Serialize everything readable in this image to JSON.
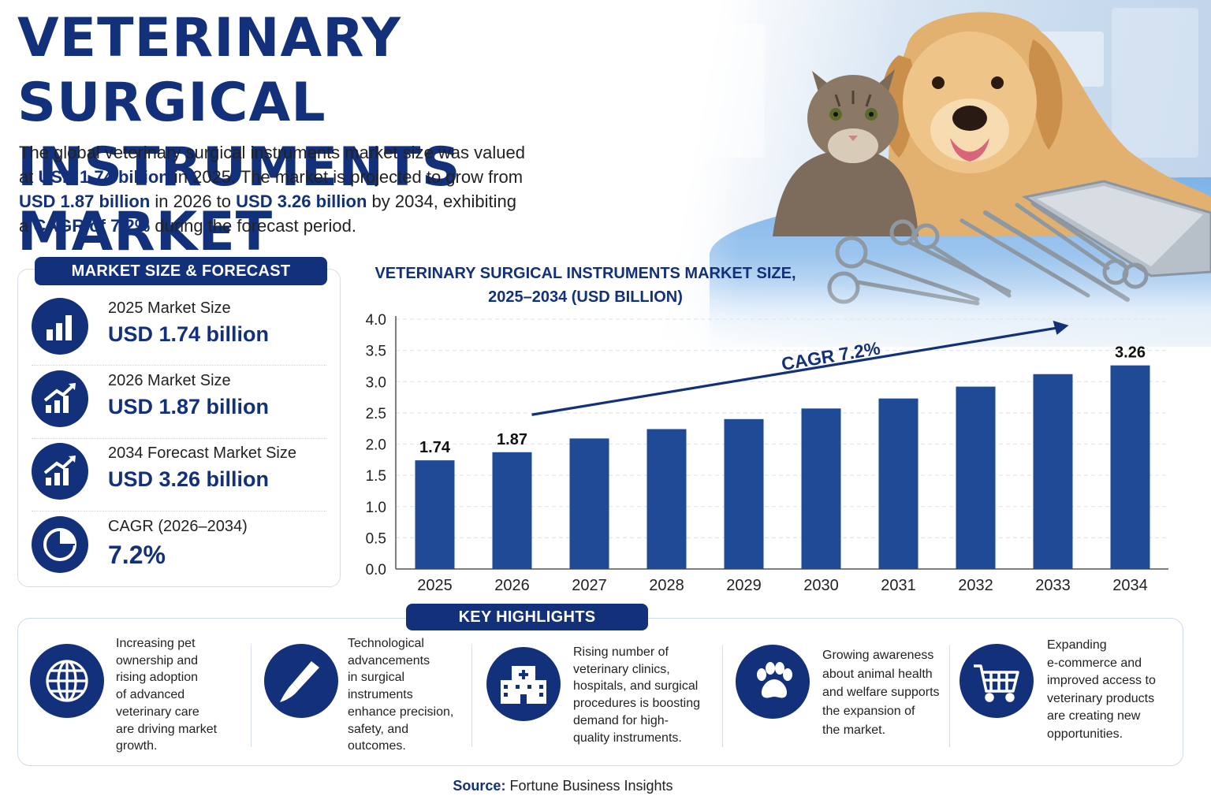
{
  "title": {
    "line1": "VETERINARY SURGICAL",
    "line2": "INSTRUMENTS MARKET"
  },
  "intro": {
    "l1": "The global veterinary surgical instruments market size was valued",
    "l2a": "at ",
    "l2b": "USD 1.74 billion",
    "l2c": " in 2025. The market is projected to grow from",
    "l3a": "USD 1.87 billion",
    "l3b": " in 2026 to ",
    "l3c": "USD 3.26 billion",
    "l3d": " by 2034, exhibiting",
    "l4a": "a ",
    "l4b": "CAGR of 7.2%",
    "l4c": " during the forecast period."
  },
  "market_panel": {
    "heading": "MARKET SIZE & FORECAST",
    "items": [
      {
        "label": "2025 Market Size",
        "value": "USD 1.74 billion",
        "icon": "bar-chart-icon"
      },
      {
        "label": "2026 Market Size",
        "value": "USD 1.87 billion",
        "icon": "growth-chart-icon"
      },
      {
        "label": "2034 Forecast Market Size",
        "value": "USD 3.26 billion",
        "icon": "growth-chart-icon"
      },
      {
        "label": "CAGR (2026–2034)",
        "value": "7.2%",
        "icon": "pie-chart-icon"
      }
    ]
  },
  "chart_data": {
    "type": "bar",
    "title_line1": "VETERINARY SURGICAL INSTRUMENTS MARKET SIZE,",
    "title_line2": "2025–2034 (USD BILLION)",
    "categories": [
      "2025",
      "2026",
      "2027",
      "2028",
      "2029",
      "2030",
      "2031",
      "2032",
      "2033",
      "2034"
    ],
    "values": [
      1.74,
      1.87,
      2.09,
      2.24,
      2.4,
      2.57,
      2.73,
      2.92,
      3.12,
      3.26
    ],
    "data_labels": {
      "2025": "1.74",
      "2026": "1.87",
      "2034": "3.26"
    },
    "yticks": [
      "0.0",
      "0.5",
      "1.0",
      "1.5",
      "2.0",
      "2.5",
      "3.0",
      "3.5",
      "4.0"
    ],
    "ylim": [
      0,
      4
    ],
    "annotation": "CAGR 7.2%",
    "bar_color": "#1f4a95",
    "grid": true
  },
  "highlights": {
    "heading": "KEY HIGHLIGHTS",
    "items": [
      {
        "icon": "globe-icon",
        "lines": [
          "Increasing pet",
          "ownership and",
          "rising adoption",
          "of advanced",
          "veterinary care",
          "are driving market",
          "growth."
        ]
      },
      {
        "icon": "scalpel-icon",
        "lines": [
          "Technological",
          "advancements",
          "in surgical",
          "instruments",
          "enhance precision,",
          "safety, and",
          "outcomes."
        ]
      },
      {
        "icon": "hospital-icon",
        "lines": [
          "Rising number of",
          "veterinary clinics,",
          "hospitals, and surgical",
          "procedures is boosting",
          "demand for high-",
          "quality instruments."
        ]
      },
      {
        "icon": "paw-icon",
        "lines": [
          "Growing awareness",
          "about animal health",
          "and welfare supports",
          "the expansion of",
          "the market."
        ]
      },
      {
        "icon": "shopping-cart-icon",
        "lines": [
          "Expanding",
          "e-commerce and",
          "improved access to",
          "veterinary products",
          "are creating new",
          "opportunities."
        ]
      }
    ]
  },
  "source": {
    "label": "Source:",
    "text": " Fortune Business Insights"
  },
  "colors": {
    "navy": "#13307a",
    "bar": "#1f4a95"
  }
}
